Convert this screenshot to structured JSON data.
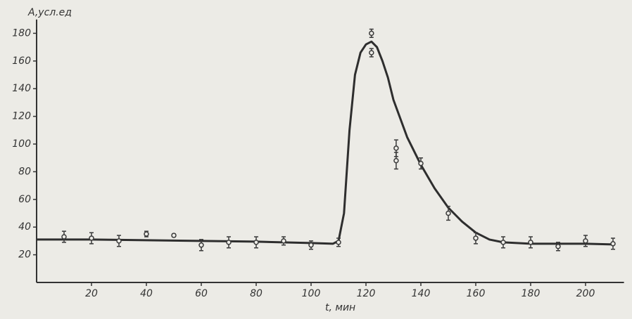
{
  "chart_data": {
    "type": "scatter",
    "ylabel": "A,усл.ед",
    "xlabel": "t, мин",
    "x": [
      10,
      20,
      30,
      40,
      50,
      60,
      70,
      80,
      90,
      100,
      110,
      122,
      122,
      131,
      131,
      140,
      150,
      160,
      170,
      180,
      190,
      200,
      210
    ],
    "values": [
      33,
      32,
      30,
      35,
      34,
      27,
      29,
      29,
      30,
      27,
      29,
      180,
      166,
      97,
      88,
      86,
      50,
      32,
      29,
      29,
      26,
      30,
      28
    ],
    "errors": [
      4,
      4,
      4,
      2,
      1,
      4,
      4,
      4,
      3,
      3,
      3,
      3,
      3,
      6,
      6,
      4,
      5,
      4,
      4,
      4,
      3,
      4,
      4
    ],
    "color": "#3a3a3a",
    "curve": {
      "x": [
        0,
        20,
        40,
        60,
        80,
        100,
        108,
        110,
        112,
        114,
        116,
        118,
        120,
        122,
        124,
        126,
        128,
        130,
        135,
        140,
        145,
        150,
        155,
        160,
        165,
        170,
        180,
        200,
        210
      ],
      "values": [
        31,
        31,
        30.5,
        30,
        29.5,
        28.5,
        28,
        30,
        50,
        110,
        150,
        166,
        172,
        174,
        170,
        160,
        148,
        132,
        105,
        85,
        68,
        54,
        44,
        36,
        31,
        29,
        28,
        28,
        27.5
      ],
      "color": "#2e2e2e"
    },
    "xlim": [
      0,
      214
    ],
    "ylim": [
      0,
      190
    ],
    "xticks": [
      20,
      40,
      60,
      80,
      100,
      120,
      140,
      160,
      180,
      200
    ],
    "yticks": [
      20,
      40,
      60,
      80,
      100,
      120,
      140,
      160,
      180
    ]
  }
}
